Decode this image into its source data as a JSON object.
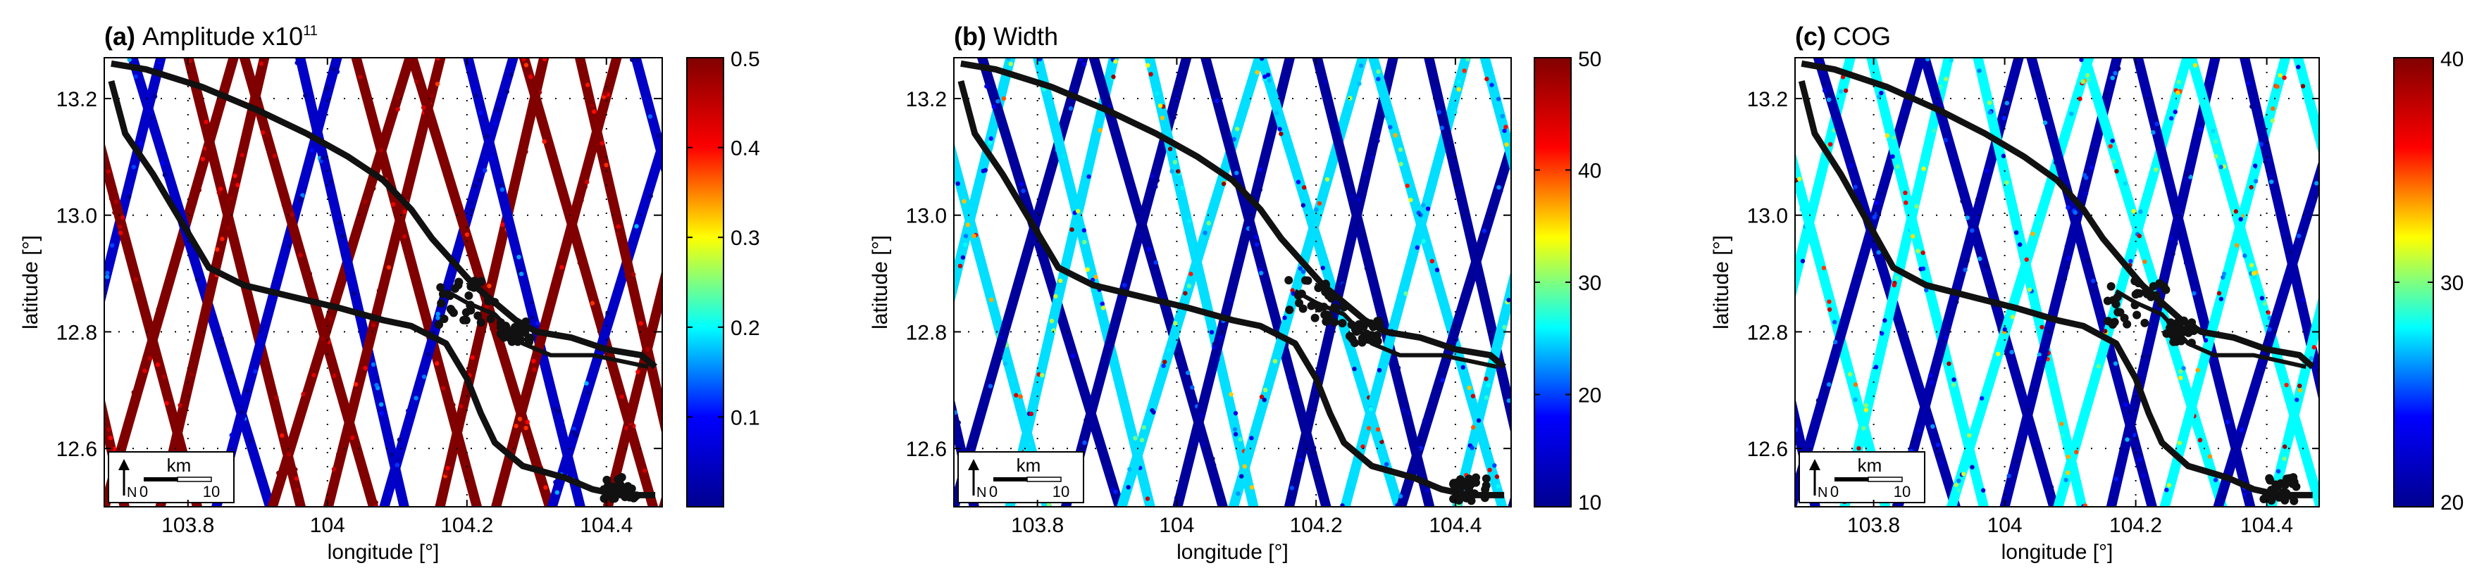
{
  "colormap": [
    "#00008f",
    "#0000ff",
    "#00ffff",
    "#ffff00",
    "#ff0000",
    "#800000"
  ],
  "track_color": "#111111",
  "scale_bar": {
    "unit": "km",
    "min_label": "0",
    "max_label": "10",
    "north_label": "N"
  },
  "chart_data": [
    {
      "type": "scatter",
      "panel_label": "(a)",
      "title": "Amplitude x10",
      "title_superscript": "11",
      "xlabel": "longitude [°]",
      "ylabel": "latitude [°]",
      "xlim": [
        103.68,
        104.48
      ],
      "ylim": [
        12.5,
        13.27
      ],
      "xticks": [
        103.8,
        104,
        104.2,
        104.4
      ],
      "xtick_labels": [
        "103.8",
        "104",
        "104.2",
        "104.4"
      ],
      "yticks": [
        12.6,
        12.8,
        13.0,
        13.2
      ],
      "ytick_labels": [
        "12.6",
        "12.8",
        "13.0",
        "13.2"
      ],
      "colorbar": {
        "min": 0.0,
        "max": 0.5,
        "ticks": [
          0.1,
          0.2,
          0.3,
          0.4,
          0.5
        ],
        "tick_labels": [
          "0.1",
          "0.2",
          "0.3",
          "0.4",
          "0.5"
        ]
      },
      "grid": "dotted",
      "dominant_value_high": 0.5,
      "dominant_value_low": 0.05
    },
    {
      "type": "scatter",
      "panel_label": "(b)",
      "title": "Width",
      "title_superscript": "",
      "xlabel": "longitude [°]",
      "ylabel": "latitude [°]",
      "xlim": [
        103.68,
        104.48
      ],
      "ylim": [
        12.5,
        13.27
      ],
      "xticks": [
        103.8,
        104,
        104.2,
        104.4
      ],
      "xtick_labels": [
        "103.8",
        "104",
        "104.2",
        "104.4"
      ],
      "yticks": [
        12.6,
        12.8,
        13.0,
        13.2
      ],
      "ytick_labels": [
        "12.6",
        "12.8",
        "13.0",
        "13.2"
      ],
      "colorbar": {
        "min": 10,
        "max": 50,
        "ticks": [
          10,
          20,
          30,
          40,
          50
        ],
        "tick_labels": [
          "10",
          "20",
          "30",
          "40",
          "50"
        ]
      },
      "grid": "dotted",
      "dominant_value_high": 25,
      "dominant_value_low": 11
    },
    {
      "type": "scatter",
      "panel_label": "(c)",
      "title": "COG",
      "title_superscript": "",
      "xlabel": "longitude [°]",
      "ylabel": "latitude [°]",
      "xlim": [
        103.68,
        104.48
      ],
      "ylim": [
        12.5,
        13.27
      ],
      "xticks": [
        103.8,
        104,
        104.2,
        104.4
      ],
      "xtick_labels": [
        "103.8",
        "104",
        "104.2",
        "104.4"
      ],
      "yticks": [
        12.6,
        12.8,
        13.0,
        13.2
      ],
      "ytick_labels": [
        "12.6",
        "12.8",
        "13.0",
        "13.2"
      ],
      "colorbar": {
        "min": 20,
        "max": 40,
        "ticks": [
          20,
          30,
          40
        ],
        "tick_labels": [
          "20",
          "30",
          "40"
        ]
      },
      "grid": "dotted",
      "dominant_value_high": 28,
      "dominant_value_low": 21
    }
  ],
  "lake_outline": [
    [
      103.69,
      13.26
    ],
    [
      103.74,
      13.25
    ],
    [
      103.82,
      13.22
    ],
    [
      103.9,
      13.18
    ],
    [
      103.97,
      13.14
    ],
    [
      104.03,
      13.1
    ],
    [
      104.08,
      13.06
    ],
    [
      104.12,
      13.01
    ],
    [
      104.15,
      12.96
    ],
    [
      104.18,
      12.92
    ],
    [
      104.21,
      12.88
    ],
    [
      104.24,
      12.85
    ],
    [
      104.27,
      12.82
    ],
    [
      104.3,
      12.8
    ],
    [
      104.35,
      12.79
    ],
    [
      104.4,
      12.77
    ],
    [
      104.45,
      12.76
    ],
    [
      104.47,
      12.74
    ]
  ],
  "lake_outline_lower": [
    [
      103.69,
      13.23
    ],
    [
      103.71,
      13.14
    ],
    [
      103.75,
      13.07
    ],
    [
      103.79,
      12.99
    ],
    [
      103.83,
      12.91
    ],
    [
      103.88,
      12.88
    ],
    [
      103.95,
      12.86
    ],
    [
      104.02,
      12.84
    ],
    [
      104.08,
      12.82
    ],
    [
      104.12,
      12.81
    ],
    [
      104.17,
      12.78
    ],
    [
      104.2,
      12.72
    ],
    [
      104.22,
      12.66
    ],
    [
      104.24,
      12.61
    ],
    [
      104.28,
      12.57
    ],
    [
      104.34,
      12.55
    ],
    [
      104.38,
      12.53
    ],
    [
      104.42,
      12.52
    ],
    [
      104.47,
      12.52
    ]
  ],
  "river_branch": [
    [
      104.17,
      12.87
    ],
    [
      104.2,
      12.85
    ],
    [
      104.24,
      12.83
    ],
    [
      104.28,
      12.78
    ],
    [
      104.32,
      12.76
    ],
    [
      104.38,
      12.76
    ],
    [
      104.42,
      12.75
    ],
    [
      104.46,
      12.74
    ]
  ]
}
